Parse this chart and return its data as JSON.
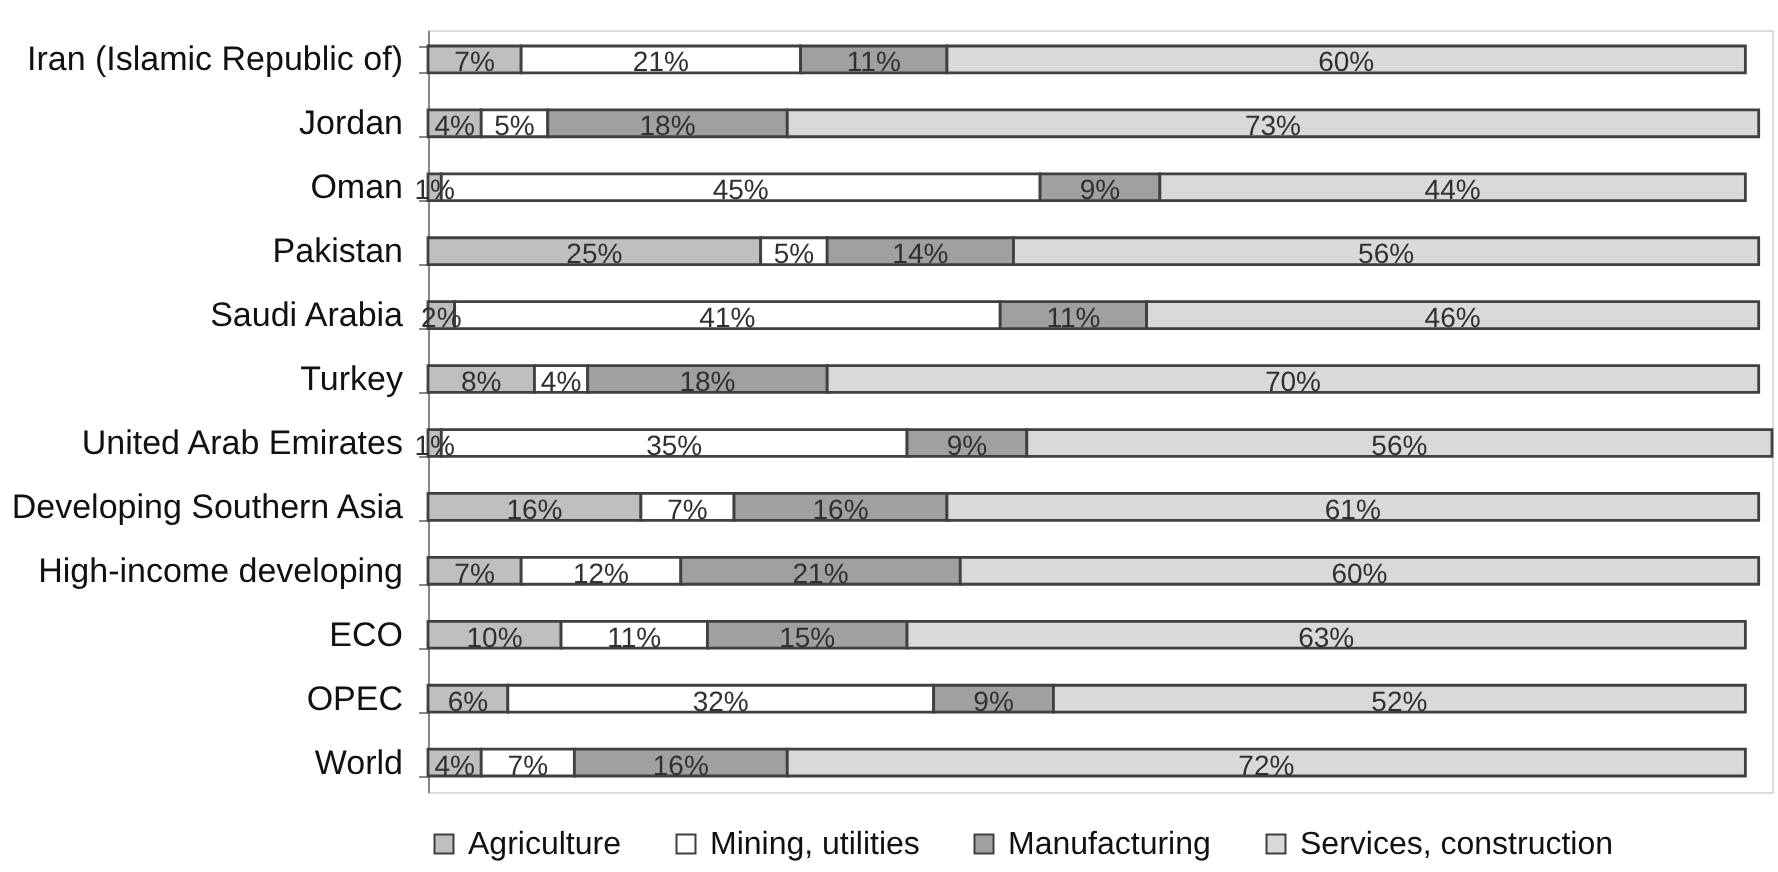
{
  "chart_data": {
    "type": "bar",
    "orientation": "horizontal",
    "stacked": true,
    "categories": [
      "Iran (Islamic Republic of)",
      "Jordan",
      "Oman",
      "Pakistan",
      "Saudi Arabia",
      "Turkey",
      "United Arab Emirates",
      "Developing Southern Asia",
      "High-income developing",
      "ECO",
      "OPEC",
      "World"
    ],
    "series": [
      {
        "name": "Agriculture",
        "color": "#bfbfbf",
        "values": [
          7,
          4,
          1,
          25,
          2,
          8,
          1,
          16,
          7,
          10,
          6,
          4
        ],
        "value_labels": [
          "7%",
          "4%",
          "1%",
          "25%",
          "2%",
          "8%",
          "1%",
          "16%",
          "7%",
          "10%",
          "6%",
          "4%"
        ]
      },
      {
        "name": "Mining, utilities",
        "color": "#ffffff",
        "values": [
          21,
          5,
          45,
          5,
          41,
          4,
          35,
          7,
          12,
          11,
          32,
          7
        ],
        "value_labels": [
          "21%",
          "5%",
          "45%",
          "5%",
          "41%",
          "4%",
          "35%",
          "7%",
          "12%",
          "11%",
          "32%",
          "7%"
        ]
      },
      {
        "name": "Manufacturing",
        "color": "#a0a0a0",
        "values": [
          11,
          18,
          9,
          14,
          11,
          18,
          9,
          16,
          21,
          15,
          9,
          16
        ],
        "value_labels": [
          "11%",
          "18%",
          "9%",
          "14%",
          "11%",
          "18%",
          "9%",
          "16%",
          "21%",
          "15%",
          "9%",
          "16%"
        ]
      },
      {
        "name": "Services, construction",
        "color": "#d9d9d9",
        "values": [
          60,
          73,
          44,
          56,
          46,
          70,
          56,
          61,
          60,
          63,
          52,
          72
        ],
        "value_labels": [
          "60%",
          "73%",
          "44%",
          "56%",
          "46%",
          "70%",
          "56%",
          "61%",
          "60%",
          "63%",
          "52%",
          "72%"
        ]
      }
    ],
    "xlim": [
      0,
      101
    ],
    "tick_labels": "y",
    "legend": "bottom"
  }
}
